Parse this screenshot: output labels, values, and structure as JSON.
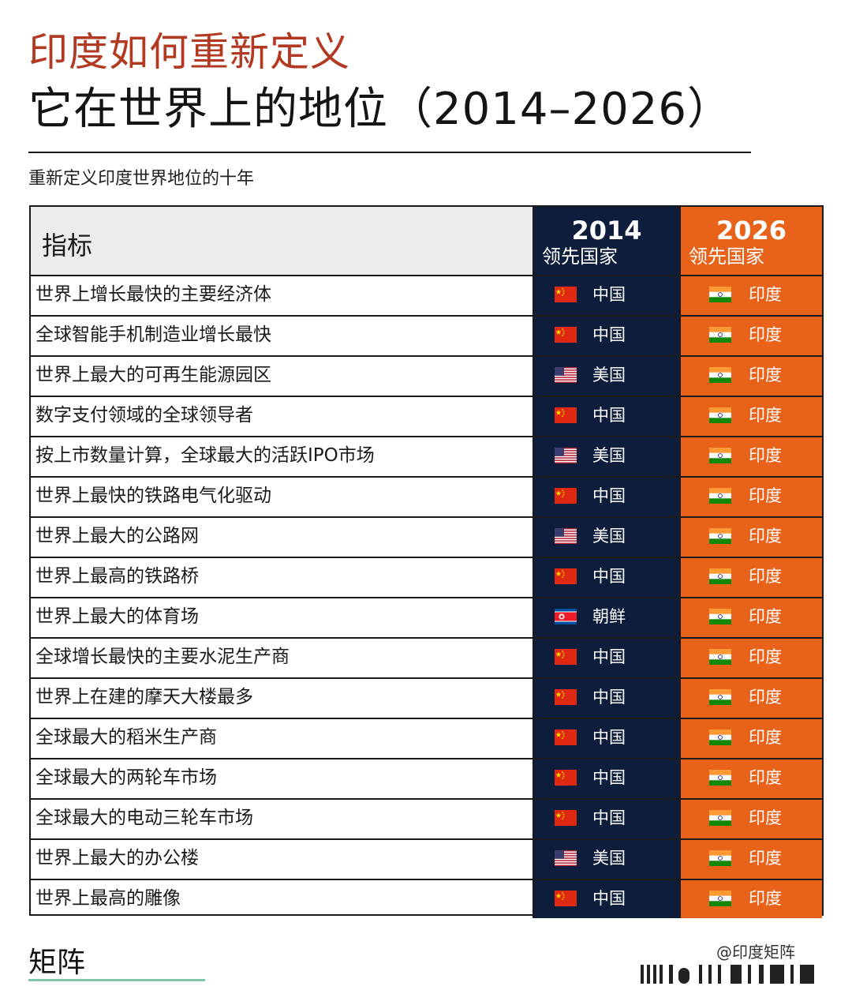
{
  "title_line1": "印度如何重新定义",
  "title_line2": "它在世界上的地位（2014–2026）",
  "subtitle": "重新定义印度世界地位的十年",
  "table": {
    "header_label": "指标",
    "year_2014": "2014",
    "year_2026": "2026",
    "leader_label": "领先国家",
    "colors": {
      "navy": "#0f1d3d",
      "orange": "#e8621a"
    },
    "rows": [
      {
        "label": "世界上增长最快的主要经济体",
        "c2014": "中国",
        "f2014": "china-flag-icon",
        "c2026": "印度",
        "f2026": "india-flag-icon"
      },
      {
        "label": "全球智能手机制造业增长最快",
        "c2014": "中国",
        "f2014": "china-flag-icon",
        "c2026": "印度",
        "f2026": "india-flag-icon"
      },
      {
        "label": "世界上最大的可再生能源园区",
        "c2014": "美国",
        "f2014": "usa-flag-icon",
        "c2026": "印度",
        "f2026": "india-flag-icon"
      },
      {
        "label": "数字支付领域的全球领导者",
        "c2014": "中国",
        "f2014": "china-flag-icon",
        "c2026": "印度",
        "f2026": "india-flag-icon"
      },
      {
        "label": "按上市数量计算，全球最大的活跃IPO市场",
        "c2014": "美国",
        "f2014": "usa-flag-icon",
        "c2026": "印度",
        "f2026": "india-flag-icon"
      },
      {
        "label": "世界上最快的铁路电气化驱动",
        "c2014": "中国",
        "f2014": "china-flag-icon",
        "c2026": "印度",
        "f2026": "india-flag-icon"
      },
      {
        "label": "世界上最大的公路网",
        "c2014": "美国",
        "f2014": "usa-flag-icon",
        "c2026": "印度",
        "f2026": "india-flag-icon"
      },
      {
        "label": "世界上最高的铁路桥",
        "c2014": "中国",
        "f2014": "china-flag-icon",
        "c2026": "印度",
        "f2026": "india-flag-icon"
      },
      {
        "label": "世界上最大的体育场",
        "c2014": "朝鲜",
        "f2014": "north-korea-flag-icon",
        "c2026": "印度",
        "f2026": "india-flag-icon"
      },
      {
        "label": "全球增长最快的主要水泥生产商",
        "c2014": "中国",
        "f2014": "china-flag-icon",
        "c2026": "印度",
        "f2026": "india-flag-icon"
      },
      {
        "label": "世界上在建的摩天大楼最多",
        "c2014": "中国",
        "f2014": "china-flag-icon",
        "c2026": "印度",
        "f2026": "india-flag-icon"
      },
      {
        "label": "全球最大的稻米生产商",
        "c2014": "中国",
        "f2014": "china-flag-icon",
        "c2026": "印度",
        "f2026": "india-flag-icon"
      },
      {
        "label": "全球最大的两轮车市场",
        "c2014": "中国",
        "f2014": "china-flag-icon",
        "c2026": "印度",
        "f2026": "india-flag-icon"
      },
      {
        "label": "全球最大的电动三轮车市场",
        "c2014": "中国",
        "f2014": "china-flag-icon",
        "c2026": "印度",
        "f2026": "india-flag-icon"
      },
      {
        "label": "世界上最大的办公楼",
        "c2014": "美国",
        "f2014": "usa-flag-icon",
        "c2026": "印度",
        "f2026": "india-flag-icon"
      },
      {
        "label": "世界上最高的雕像",
        "c2014": "中国",
        "f2014": "china-flag-icon",
        "c2026": "印度",
        "f2026": "india-flag-icon"
      }
    ]
  },
  "footer": {
    "logo_text": "矩阵",
    "watermark": "@印度矩阵"
  }
}
